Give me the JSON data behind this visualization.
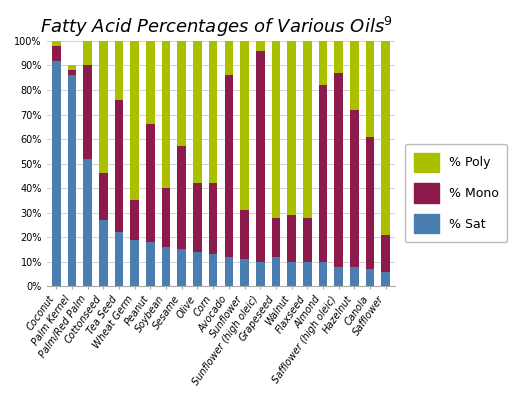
{
  "title": "Fatty Acid Percentages of Various Oils",
  "title_superscript": "9",
  "categories": [
    "Coconut",
    "Palm Kernel",
    "Palm/Red Palm",
    "Cottonseed",
    "Tea Seed",
    "Wheat Germ",
    "Peanut",
    "Soybean",
    "Sesame",
    "Olive",
    "Corn",
    "Avocado",
    "Sunflower",
    "Sunflower (high oleic)",
    "Grapeseed",
    "Walnut",
    "Flaxseed",
    "Almond",
    "Safflower (high oleic)",
    "Hazelnut",
    "Canola",
    "Safflower"
  ],
  "sat": [
    92,
    86,
    52,
    27,
    22,
    19,
    18,
    16,
    15,
    14,
    13,
    12,
    11,
    10,
    12,
    10,
    10,
    10,
    8,
    8,
    7,
    6
  ],
  "mono": [
    6,
    2,
    38,
    19,
    54,
    16,
    48,
    24,
    42,
    28,
    29,
    74,
    20,
    86,
    16,
    19,
    18,
    72,
    79,
    64,
    54,
    15
  ],
  "poly": [
    2,
    2,
    10,
    54,
    24,
    65,
    34,
    60,
    43,
    58,
    58,
    14,
    69,
    4,
    72,
    71,
    72,
    18,
    13,
    28,
    39,
    79
  ],
  "color_sat": "#4a7db0",
  "color_mono": "#8c1a4b",
  "color_poly": "#aabf00",
  "background_color": "#ffffff",
  "grid_color": "#cccccc",
  "bar_width": 0.55,
  "title_fontsize": 13,
  "tick_fontsize": 7.0,
  "legend_fontsize": 9.0
}
